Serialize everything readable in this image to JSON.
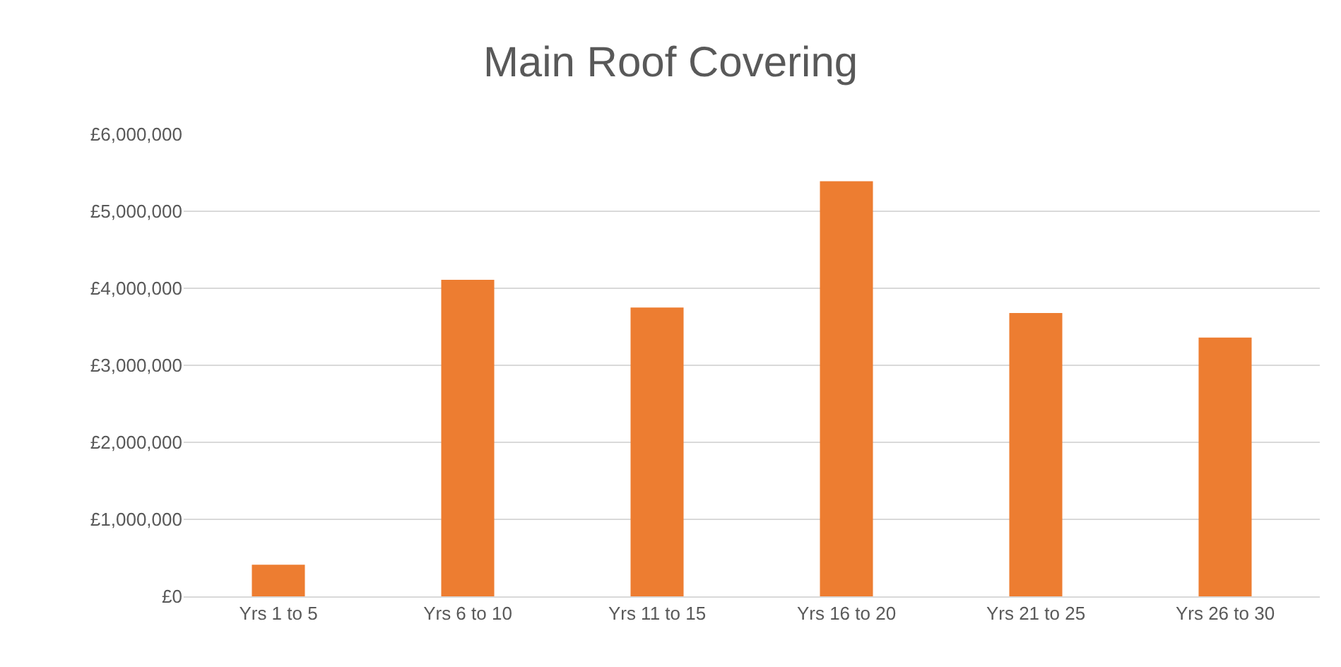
{
  "chart_data": {
    "type": "bar",
    "title": "Main Roof Covering",
    "categories": [
      "Yrs 1 to 5",
      "Yrs 6 to 10",
      "Yrs 11 to 15",
      "Yrs 16 to 20",
      "Yrs 21 to 25",
      "Yrs 26 to 30"
    ],
    "values": [
      410000,
      4110000,
      3750000,
      5390000,
      3680000,
      3360000
    ],
    "color": "#ed7d31",
    "ylim": [
      0,
      6000000
    ],
    "yticks": [
      {
        "value": 0,
        "label": "£0"
      },
      {
        "value": 1000000,
        "label": "£1,000,000"
      },
      {
        "value": 2000000,
        "label": "£2,000,000"
      },
      {
        "value": 3000000,
        "label": "£3,000,000"
      },
      {
        "value": 4000000,
        "label": "£4,000,000"
      },
      {
        "value": 5000000,
        "label": "£5,000,000"
      },
      {
        "value": 6000000,
        "label": "£6,000,000"
      }
    ],
    "grid": "y",
    "legend": false
  }
}
